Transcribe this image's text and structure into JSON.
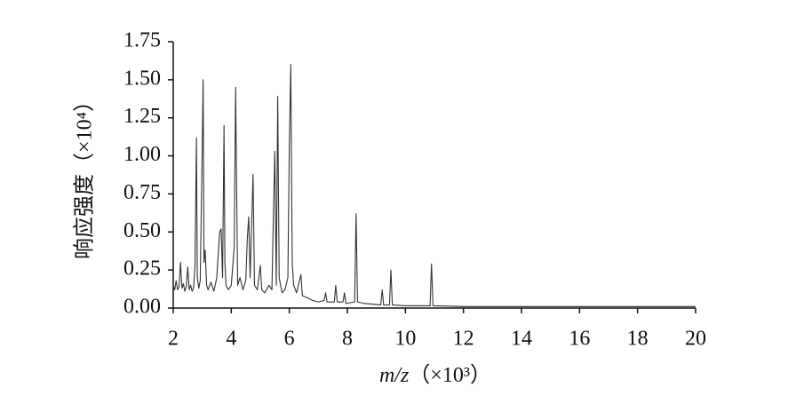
{
  "chart_data": {
    "type": "line",
    "y_label": "响应强度（×10⁴）",
    "x_label": [
      "m/z",
      "（×10³）"
    ],
    "xlim": [
      2,
      20
    ],
    "ylim": [
      0,
      1.75
    ],
    "xticks": [
      2,
      4,
      6,
      8,
      10,
      12,
      14,
      16,
      18,
      20
    ],
    "yticks": [
      {
        "value": 0,
        "label": "0.00"
      },
      {
        "value": 0.25,
        "label": "0.25"
      },
      {
        "value": 0.5,
        "label": "0.50"
      },
      {
        "value": 0.75,
        "label": "0.75"
      },
      {
        "value": 1,
        "label": "1.00"
      },
      {
        "value": 1.25,
        "label": "1.25"
      },
      {
        "value": 1.5,
        "label": "1.50"
      },
      {
        "value": 1.75,
        "label": "1.75"
      }
    ],
    "color": "#333333",
    "x": [
      2.0,
      2.05,
      2.1,
      2.15,
      2.2,
      2.25,
      2.3,
      2.35,
      2.4,
      2.45,
      2.5,
      2.55,
      2.6,
      2.65,
      2.7,
      2.75,
      2.8,
      2.83,
      2.88,
      2.93,
      3.0,
      3.03,
      3.06,
      3.1,
      3.15,
      3.2,
      3.3,
      3.4,
      3.5,
      3.6,
      3.65,
      3.7,
      3.75,
      3.78,
      3.82,
      3.9,
      4.0,
      4.1,
      4.15,
      4.18,
      4.22,
      4.3,
      4.4,
      4.5,
      4.55,
      4.6,
      4.65,
      4.75,
      4.8,
      4.9,
      5.0,
      5.05,
      5.15,
      5.3,
      5.4,
      5.45,
      5.5,
      5.55,
      5.6,
      5.65,
      5.75,
      5.85,
      5.95,
      6.0,
      6.05,
      6.1,
      6.15,
      6.25,
      6.4,
      6.45,
      6.6,
      6.8,
      7.0,
      7.2,
      7.25,
      7.3,
      7.55,
      7.6,
      7.65,
      7.85,
      7.9,
      7.95,
      8.25,
      8.3,
      8.35,
      8.6,
      9.15,
      9.2,
      9.25,
      9.45,
      9.5,
      9.55,
      10.0,
      10.85,
      10.9,
      10.95,
      12,
      14,
      16,
      18,
      20
    ],
    "values": [
      0.15,
      0.12,
      0.18,
      0.12,
      0.14,
      0.3,
      0.13,
      0.16,
      0.11,
      0.14,
      0.27,
      0.12,
      0.15,
      0.11,
      0.13,
      0.28,
      1.12,
      0.2,
      0.13,
      0.18,
      1.07,
      1.5,
      0.3,
      0.38,
      0.15,
      0.12,
      0.17,
      0.11,
      0.2,
      0.5,
      0.52,
      0.2,
      1.2,
      0.3,
      0.15,
      0.12,
      0.15,
      0.4,
      1.45,
      0.87,
      0.15,
      0.2,
      0.12,
      0.18,
      0.45,
      0.6,
      0.2,
      0.88,
      0.15,
      0.12,
      0.28,
      0.12,
      0.1,
      0.15,
      0.12,
      0.6,
      1.03,
      0.15,
      1.39,
      0.2,
      0.1,
      0.12,
      0.2,
      1.07,
      1.6,
      0.3,
      0.15,
      0.1,
      0.22,
      0.08,
      0.07,
      0.05,
      0.04,
      0.05,
      0.1,
      0.04,
      0.04,
      0.15,
      0.04,
      0.04,
      0.1,
      0.03,
      0.04,
      0.62,
      0.04,
      0.03,
      0.02,
      0.12,
      0.02,
      0.02,
      0.25,
      0.02,
      0.015,
      0.015,
      0.29,
      0.015,
      0.01,
      0.01,
      0.01,
      0.01,
      0.01
    ]
  }
}
